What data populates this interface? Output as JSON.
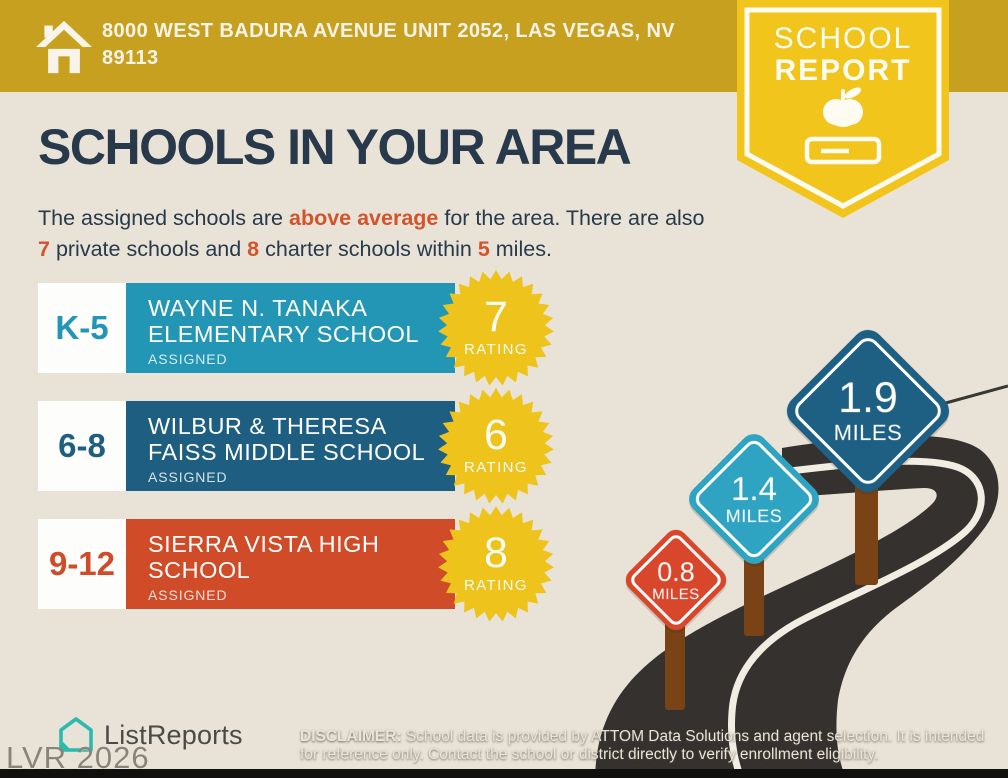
{
  "header": {
    "address_line1": "8000 WEST BADURA AVENUE UNIT 2052, LAS VEGAS, NV",
    "address_line2": "89113",
    "badge": {
      "line1": "SCHOOL",
      "line2": "REPORT"
    }
  },
  "main": {
    "title": "SCHOOLS IN YOUR AREA",
    "subtitle_segments": [
      {
        "text": "The assigned schools are ",
        "highlight": false
      },
      {
        "text": "above average",
        "highlight": true
      },
      {
        "text": " for the area. There are also ",
        "highlight": false
      },
      {
        "text": "7",
        "highlight": true
      },
      {
        "text": " private schools and ",
        "highlight": false
      },
      {
        "text": "8",
        "highlight": true
      },
      {
        "text": " charter schools within ",
        "highlight": false
      },
      {
        "text": "5",
        "highlight": true
      },
      {
        "text": " miles.",
        "highlight": false
      }
    ],
    "schools": [
      {
        "grades": "K-5",
        "name": "WAYNE N. TANAKA ELEMENTARY SCHOOL",
        "status": "ASSIGNED",
        "rating": "7",
        "rating_label": "RATING",
        "color": "#2296B4"
      },
      {
        "grades": "6-8",
        "name": "WILBUR & THERESA FAISS MIDDLE SCHOOL",
        "status": "ASSIGNED",
        "rating": "6",
        "rating_label": "RATING",
        "color": "#1D5E81"
      },
      {
        "grades": "9-12",
        "name": "SIERRA VISTA HIGH SCHOOL",
        "status": "ASSIGNED",
        "rating": "8",
        "rating_label": "RATING",
        "color": "#D04B27"
      }
    ],
    "distance_signs": [
      {
        "value": "0.8",
        "unit": "MILES",
        "color": "#D8472B"
      },
      {
        "value": "1.4",
        "unit": "MILES",
        "color": "#2FA4C2"
      },
      {
        "value": "1.9",
        "unit": "MILES",
        "color": "#1E6084"
      }
    ]
  },
  "footer": {
    "brand": "ListReports",
    "watermark": "LVR 2026",
    "disclaimer_label": "DISCLAIMER:",
    "disclaimer_text": " School data is provided by ATTOM Data Solutions and agent selection. It is intended for reference only. Contact the school or district directly to verify enrollment eligibility."
  },
  "colors": {
    "bg": "#E9E3D7",
    "gold": "#C7A01F",
    "badge_yellow": "#F2C51D",
    "star_yellow": "#EEC31C",
    "navy": "#27394A",
    "red": "#D2532C",
    "road": "#34312E",
    "road_line": "#F2EDE2",
    "post": "#7A4315",
    "brand_teal": "#2CB9AE"
  }
}
